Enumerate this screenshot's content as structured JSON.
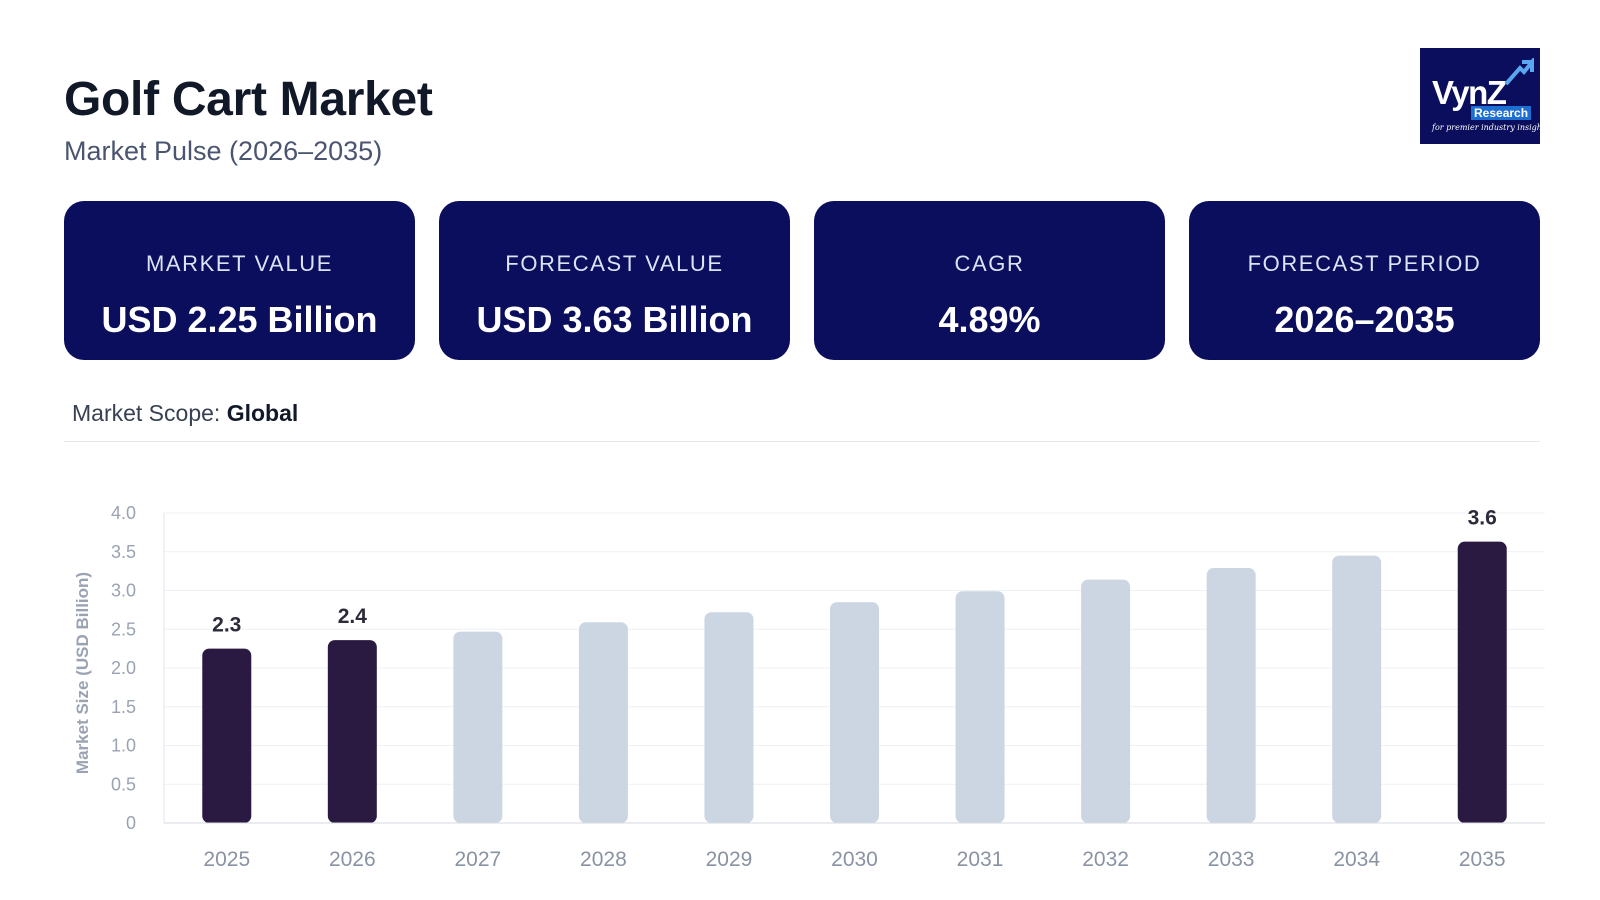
{
  "header": {
    "title": "Golf Cart Market",
    "subtitle": "Market Pulse (2026–2035)"
  },
  "logo": {
    "name": "VynZ",
    "research": "Research",
    "tagline": "for premier industry insights"
  },
  "cards": [
    {
      "label": "MARKET VALUE",
      "value": "USD 2.25 Billion"
    },
    {
      "label": "FORECAST VALUE",
      "value": "USD 3.63 Billion"
    },
    {
      "label": "CAGR",
      "value": "4.89%"
    },
    {
      "label": "FORECAST PERIOD",
      "value": "2026–2035"
    }
  ],
  "scope": {
    "label": "Market Scope:",
    "value": "Global"
  },
  "colors": {
    "card_bg": "#0a0e5c",
    "bar_highlight": "#2a1a42",
    "bar_muted": "#ccd6e2",
    "grid": "#eef1f5",
    "axis_text": "#9aa3b2"
  },
  "chart_data": {
    "type": "bar",
    "ylabel": "Market Size (USD Billion)",
    "xlabel": "",
    "ylim": [
      0,
      4.0
    ],
    "yticks": [
      "0",
      "0.5",
      "1.0",
      "1.5",
      "2.0",
      "2.5",
      "3.0",
      "3.5",
      "4.0"
    ],
    "grid": true,
    "categories": [
      "2025",
      "2026",
      "2027",
      "2028",
      "2029",
      "2030",
      "2031",
      "2032",
      "2033",
      "2034",
      "2035"
    ],
    "values": [
      2.25,
      2.36,
      2.47,
      2.59,
      2.72,
      2.85,
      2.99,
      3.14,
      3.29,
      3.45,
      3.63
    ],
    "highlighted": [
      true,
      true,
      false,
      false,
      false,
      false,
      false,
      false,
      false,
      false,
      true
    ],
    "data_labels": [
      "2.3",
      "2.4",
      "",
      "",
      "",
      "",
      "",
      "",
      "",
      "",
      "3.6"
    ]
  }
}
